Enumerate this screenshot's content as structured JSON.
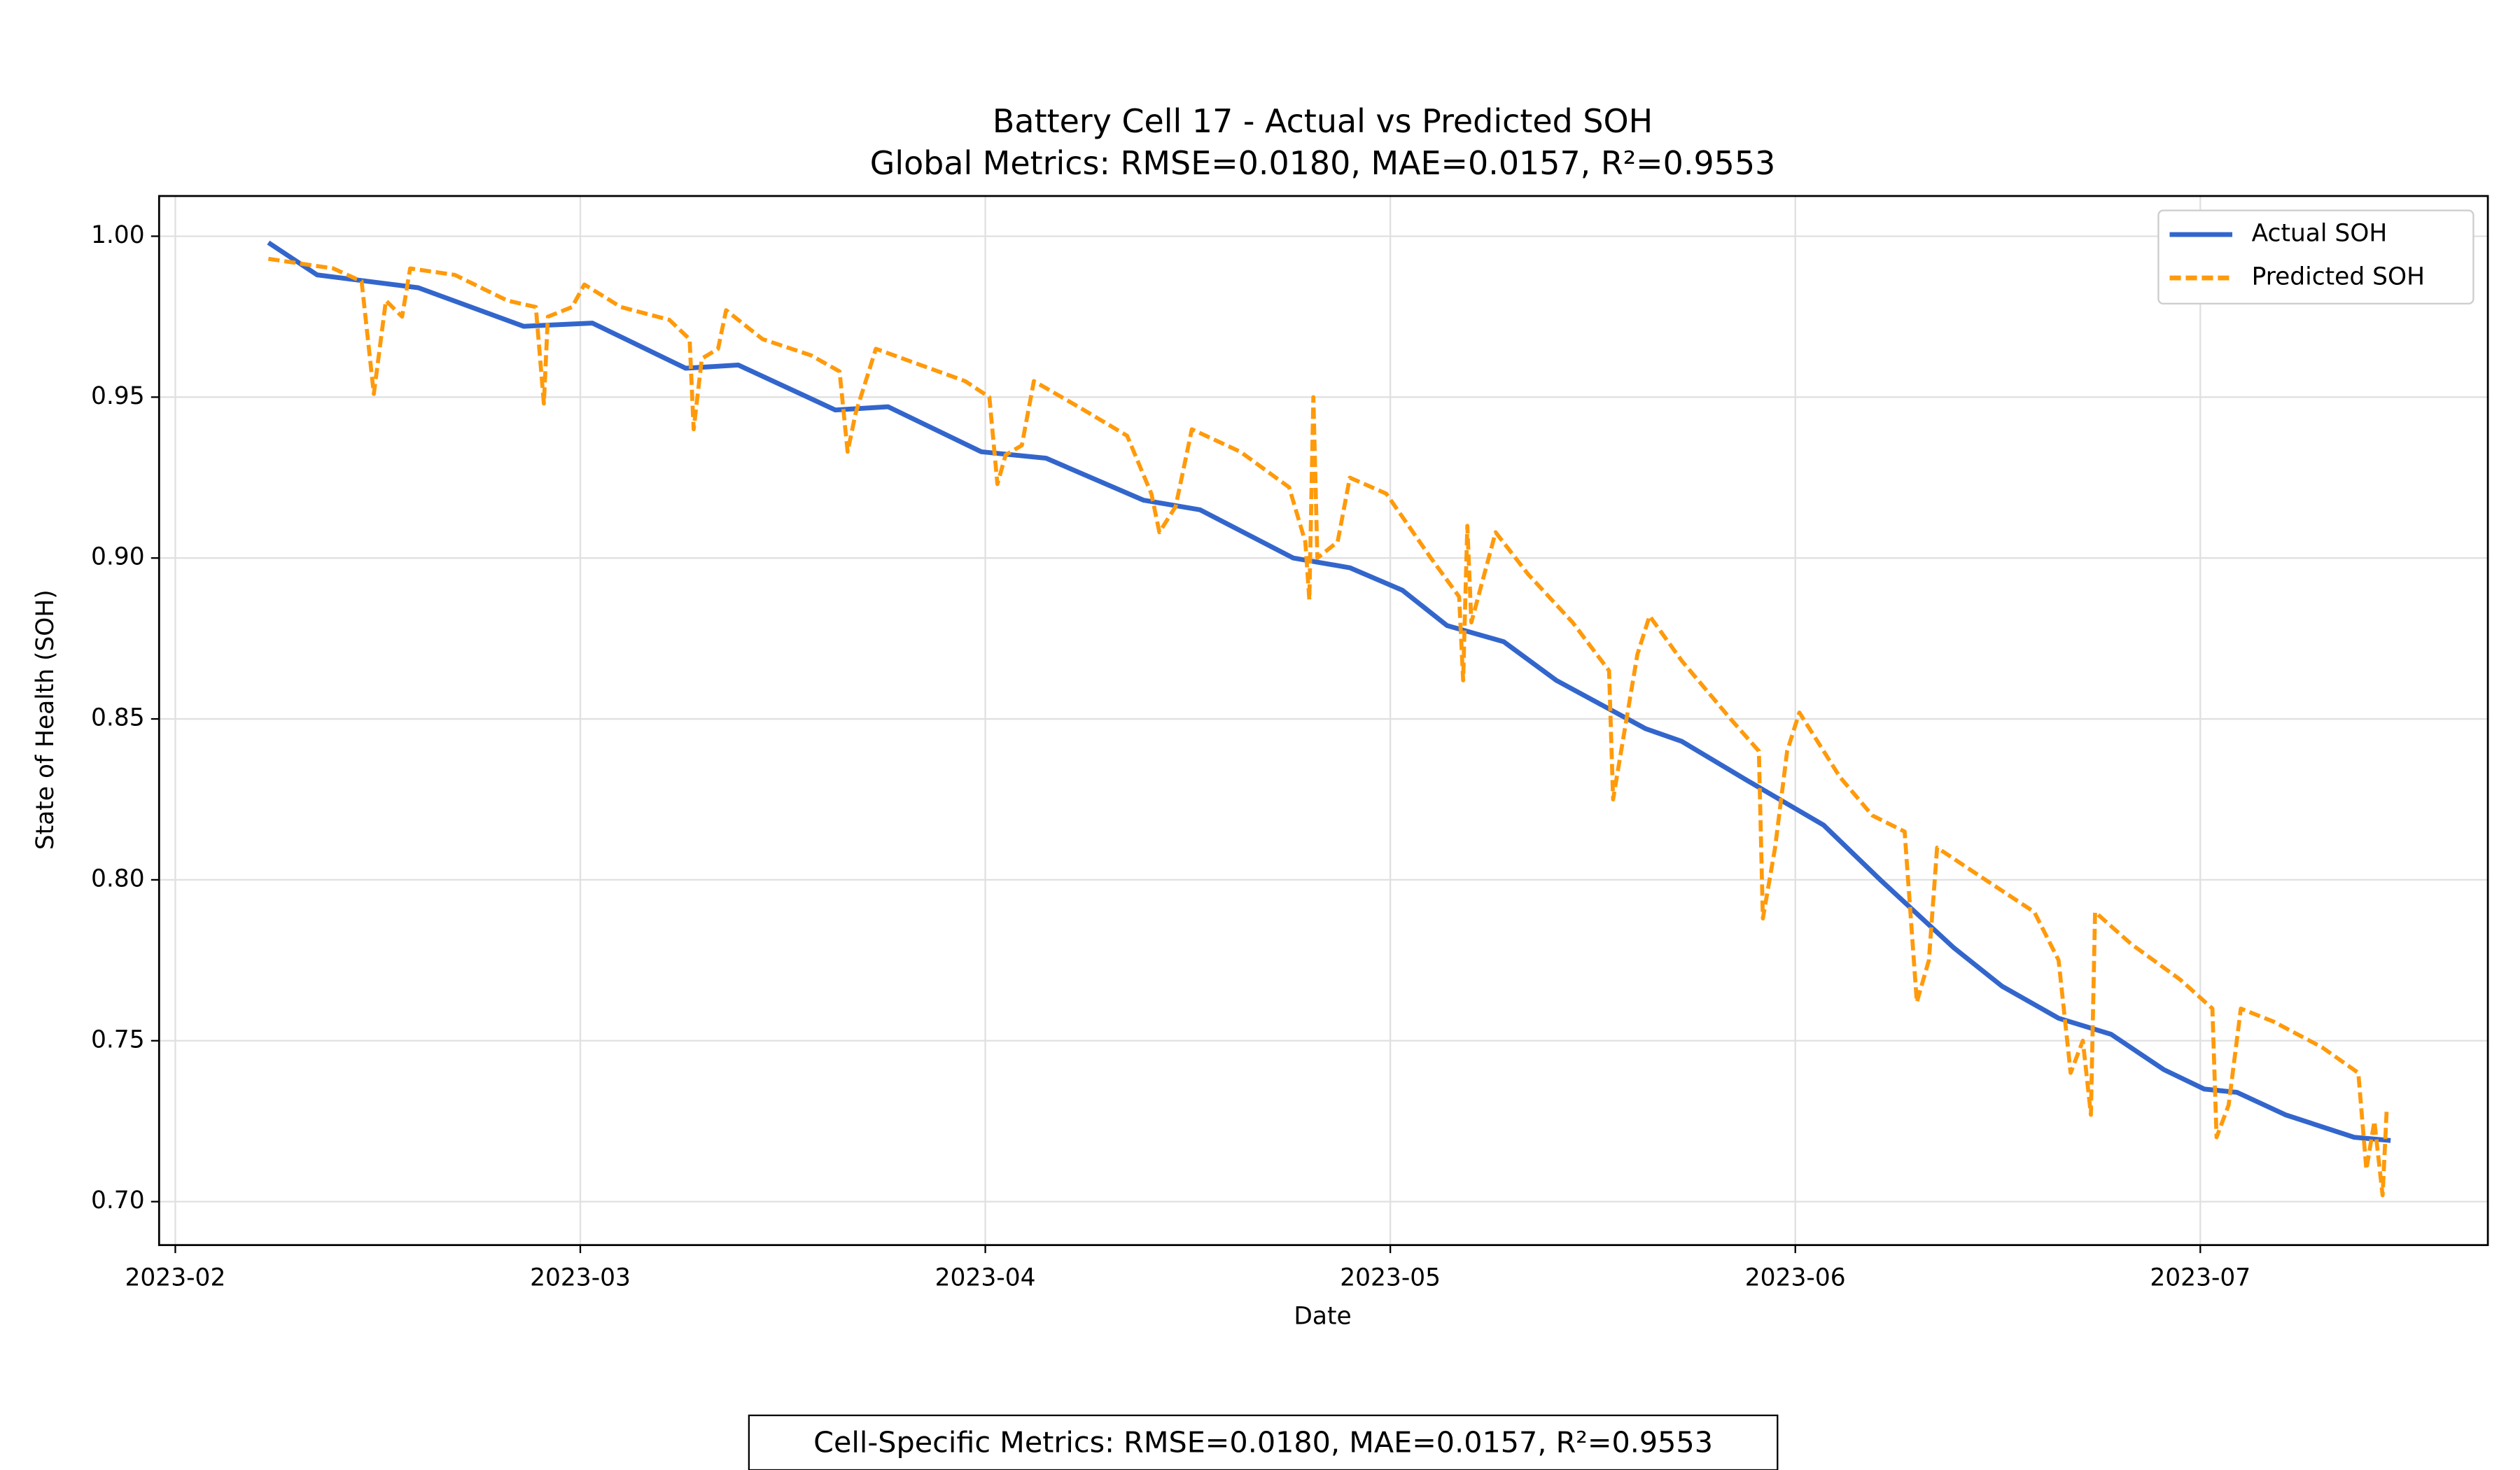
{
  "chart_data": {
    "type": "line",
    "title": "Battery Cell 17 - Actual vs Predicted SOH",
    "subtitle": "Global Metrics: RMSE=0.0180, MAE=0.0157, R²=0.9553",
    "x_label": "Date",
    "y_label": "State of Health (SOH)",
    "annotation": "Cell-Specific Metrics: RMSE=0.0180, MAE=0.0157, R²=0.9553",
    "xlim": [
      0.96,
      6.71
    ],
    "ylim": [
      0.6865,
      1.0125
    ],
    "xticks": [
      {
        "value": 1,
        "label": "2023-02"
      },
      {
        "value": 2,
        "label": "2023-03"
      },
      {
        "value": 3,
        "label": "2023-04"
      },
      {
        "value": 4,
        "label": "2023-05"
      },
      {
        "value": 5,
        "label": "2023-06"
      },
      {
        "value": 6,
        "label": "2023-07"
      }
    ],
    "yticks": [
      {
        "value": 0.7,
        "label": "0.70"
      },
      {
        "value": 0.75,
        "label": "0.75"
      },
      {
        "value": 0.8,
        "label": "0.80"
      },
      {
        "value": 0.85,
        "label": "0.85"
      },
      {
        "value": 0.9,
        "label": "0.90"
      },
      {
        "value": 0.95,
        "label": "0.95"
      },
      {
        "value": 1.0,
        "label": "1.00"
      }
    ],
    "grid": true,
    "legend": "upper right",
    "series": [
      {
        "name": "Actual SOH",
        "color": "#3366cc",
        "dash": false,
        "x": [
          1.23,
          1.35,
          1.6,
          1.86,
          2.03,
          2.26,
          2.39,
          2.63,
          2.76,
          2.99,
          3.15,
          3.39,
          3.53,
          3.76,
          3.9,
          4.03,
          4.14,
          4.28,
          4.41,
          4.63,
          4.72,
          4.88,
          5.07,
          5.21,
          5.39,
          5.51,
          5.65,
          5.78,
          5.91,
          6.01,
          6.09,
          6.21,
          6.38,
          6.47
        ],
        "values": [
          0.998,
          0.988,
          0.984,
          0.972,
          0.973,
          0.959,
          0.96,
          0.946,
          0.947,
          0.933,
          0.931,
          0.918,
          0.915,
          0.9,
          0.897,
          0.89,
          0.879,
          0.874,
          0.862,
          0.847,
          0.843,
          0.831,
          0.817,
          0.8,
          0.779,
          0.767,
          0.757,
          0.752,
          0.741,
          0.735,
          0.734,
          0.727,
          0.72,
          0.719
        ]
      },
      {
        "name": "Predicted SOH",
        "color": "#ff9a0a",
        "dash": true,
        "x": [
          1.23,
          1.39,
          1.46,
          1.49,
          1.52,
          1.56,
          1.58,
          1.69,
          1.82,
          1.89,
          1.91,
          1.92,
          1.98,
          2.01,
          2.1,
          2.22,
          2.27,
          2.28,
          2.3,
          2.34,
          2.36,
          2.45,
          2.57,
          2.64,
          2.66,
          2.68,
          2.73,
          2.84,
          2.95,
          3.01,
          3.03,
          3.05,
          3.09,
          3.12,
          3.23,
          3.35,
          3.41,
          3.43,
          3.47,
          3.51,
          3.63,
          3.75,
          3.79,
          3.8,
          3.81,
          3.82,
          3.87,
          3.9,
          3.99,
          4.1,
          4.17,
          4.18,
          4.19,
          4.2,
          4.26,
          4.34,
          4.45,
          4.54,
          4.55,
          4.57,
          4.61,
          4.64,
          4.72,
          4.84,
          4.91,
          4.92,
          4.95,
          4.98,
          5.01,
          5.11,
          5.19,
          5.27,
          5.3,
          5.33,
          5.35,
          5.47,
          5.59,
          5.65,
          5.68,
          5.71,
          5.73,
          5.74,
          5.83,
          5.95,
          6.03,
          6.04,
          6.07,
          6.1,
          6.18,
          6.3,
          6.39,
          6.41,
          6.43,
          6.45,
          6.46
        ],
        "values": [
          0.993,
          0.99,
          0.986,
          0.951,
          0.98,
          0.975,
          0.99,
          0.988,
          0.98,
          0.978,
          0.948,
          0.975,
          0.978,
          0.985,
          0.978,
          0.974,
          0.968,
          0.94,
          0.962,
          0.965,
          0.977,
          0.968,
          0.963,
          0.958,
          0.933,
          0.945,
          0.965,
          0.96,
          0.955,
          0.95,
          0.923,
          0.932,
          0.935,
          0.955,
          0.947,
          0.938,
          0.92,
          0.908,
          0.916,
          0.94,
          0.933,
          0.922,
          0.905,
          0.887,
          0.95,
          0.9,
          0.905,
          0.925,
          0.92,
          0.9,
          0.888,
          0.862,
          0.91,
          0.88,
          0.908,
          0.895,
          0.88,
          0.865,
          0.825,
          0.84,
          0.87,
          0.882,
          0.868,
          0.85,
          0.84,
          0.788,
          0.81,
          0.84,
          0.852,
          0.832,
          0.82,
          0.815,
          0.762,
          0.775,
          0.81,
          0.8,
          0.79,
          0.775,
          0.74,
          0.75,
          0.727,
          0.79,
          0.78,
          0.769,
          0.76,
          0.72,
          0.73,
          0.76,
          0.756,
          0.748,
          0.74,
          0.71,
          0.725,
          0.702,
          0.728
        ]
      }
    ]
  }
}
